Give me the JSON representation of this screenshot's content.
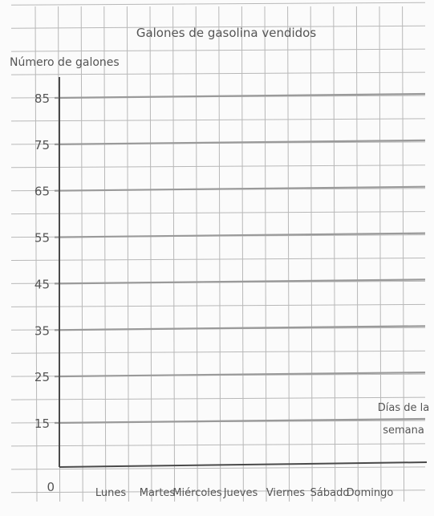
{
  "chart_data": {
    "type": "bar",
    "title": "Galones de gasolina vendidos",
    "ylabel": "Número de galones",
    "xlabel": "Días de la semana",
    "categories": [
      "Lunes",
      "Martes",
      "Miércoles",
      "Jueves",
      "Viernes",
      "Sábado",
      "Domingo"
    ],
    "series": [],
    "y_ticks": [
      0,
      15,
      25,
      35,
      45,
      55,
      65,
      75,
      85
    ],
    "ylim": [
      0,
      95
    ],
    "grid": true,
    "legend": "none"
  },
  "colors": {
    "background": "#fbfbfb",
    "grid_line": "#b8b8b8",
    "grid_major": "#9a9a9a",
    "axis": "#4a4a4a",
    "text": "#555555"
  }
}
